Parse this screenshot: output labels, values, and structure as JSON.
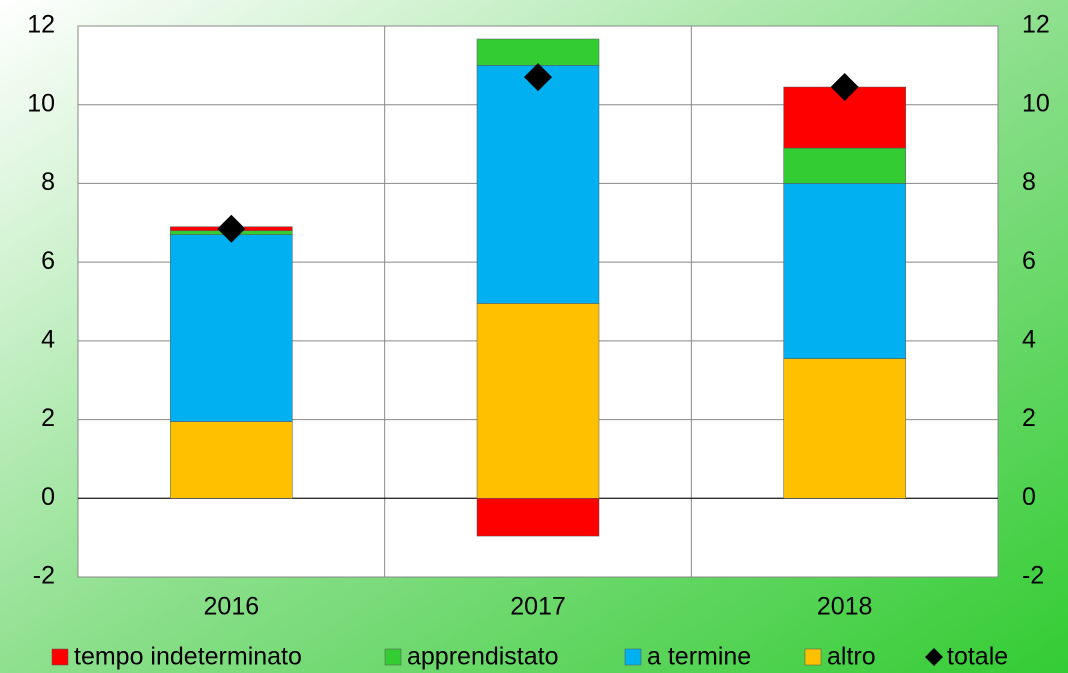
{
  "chart_data": {
    "type": "bar",
    "stacked": true,
    "categories": [
      "2016",
      "2017",
      "2018"
    ],
    "series": [
      {
        "name": "tempo indeterminato",
        "color": "#ff0000",
        "values": [
          0.1,
          -0.96,
          1.55
        ]
      },
      {
        "name": "apprendistato",
        "color": "#33cc33",
        "values": [
          0.1,
          0.67,
          0.9
        ]
      },
      {
        "name": "a termine",
        "color": "#00b0f0",
        "values": [
          4.75,
          6.05,
          4.45
        ]
      },
      {
        "name": "altro",
        "color": "#ffc000",
        "values": [
          1.95,
          4.95,
          3.55
        ]
      },
      {
        "name": "totale",
        "color": "#000000",
        "marker": "diamond",
        "values": [
          6.85,
          10.7,
          10.45
        ]
      }
    ],
    "ylim": [
      -2,
      12
    ],
    "yticks": [
      -2,
      0,
      2,
      4,
      6,
      8,
      10,
      12
    ],
    "y2lim": [
      -2,
      12
    ],
    "y2ticks": [
      -2,
      0,
      2,
      4,
      6,
      8,
      10,
      12
    ],
    "grid": true,
    "legend": "bottom"
  }
}
